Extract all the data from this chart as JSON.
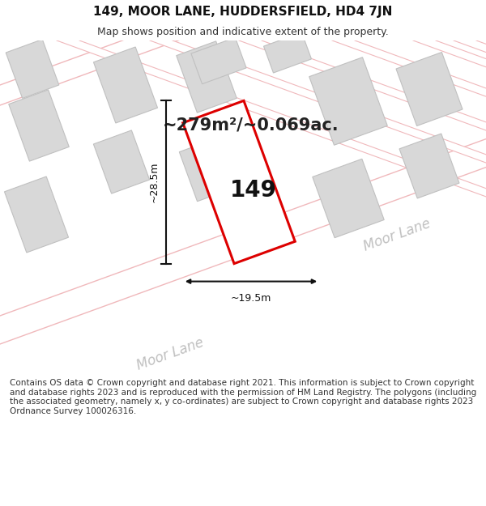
{
  "title": "149, MOOR LANE, HUDDERSFIELD, HD4 7JN",
  "subtitle": "Map shows position and indicative extent of the property.",
  "area_text": "~279m²/~0.069ac.",
  "property_number": "149",
  "dim_width": "~19.5m",
  "dim_height": "~28.5m",
  "moor_lane_label1": "Moor Lane",
  "moor_lane_label2": "Moor Lane",
  "footer": "Contains OS data © Crown copyright and database right 2021. This information is subject to Crown copyright and database rights 2023 and is reproduced with the permission of HM Land Registry. The polygons (including the associated geometry, namely x, y co-ordinates) are subject to Crown copyright and database rights 2023 Ordnance Survey 100026316.",
  "bg_color": "#ffffff",
  "map_bg": "#ffffff",
  "road_line_color": "#f0b8bb",
  "building_fill": "#d8d8d8",
  "building_edge": "#c0c0c0",
  "property_fill": "#ffffff",
  "property_edge": "#dd0000",
  "dim_line_color": "#111111",
  "text_color": "#333333",
  "title_fontsize": 11,
  "subtitle_fontsize": 9,
  "area_fontsize": 15,
  "number_fontsize": 20,
  "dim_fontsize": 9,
  "road_label_fontsize": 12
}
